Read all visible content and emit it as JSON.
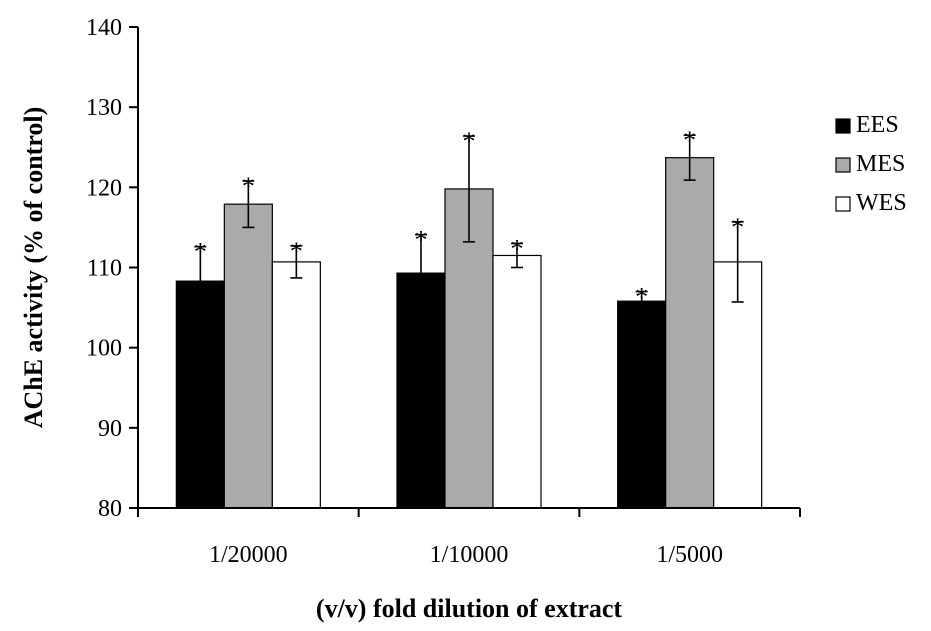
{
  "chart_data": {
    "type": "bar",
    "title": "",
    "xlabel": "(v/v) fold dilution of extract",
    "ylabel": "AChE activity (% of control)",
    "ylim": [
      80,
      140
    ],
    "yticks": [
      80,
      90,
      100,
      110,
      120,
      130,
      140
    ],
    "grid": false,
    "legend_position": "right",
    "categories": [
      "1/20000",
      "1/10000",
      "1/5000"
    ],
    "series": [
      {
        "name": "EES",
        "color": "#000000",
        "values": [
          108.3,
          109.3,
          105.8
        ],
        "errors": [
          4.3,
          4.8,
          1.2
        ],
        "annotations": [
          "*",
          "*",
          "*"
        ]
      },
      {
        "name": "MES",
        "color": "#aaaaaa",
        "values": [
          117.9,
          119.8,
          123.7
        ],
        "errors": [
          2.9,
          6.6,
          2.8
        ],
        "annotations": [
          "*",
          "*",
          "*"
        ]
      },
      {
        "name": "WES",
        "color": "#ffffff",
        "values": [
          110.7,
          111.5,
          110.7
        ],
        "errors": [
          2.0,
          1.5,
          5.0
        ],
        "annotations": [
          "*",
          "*",
          "*"
        ]
      }
    ]
  }
}
